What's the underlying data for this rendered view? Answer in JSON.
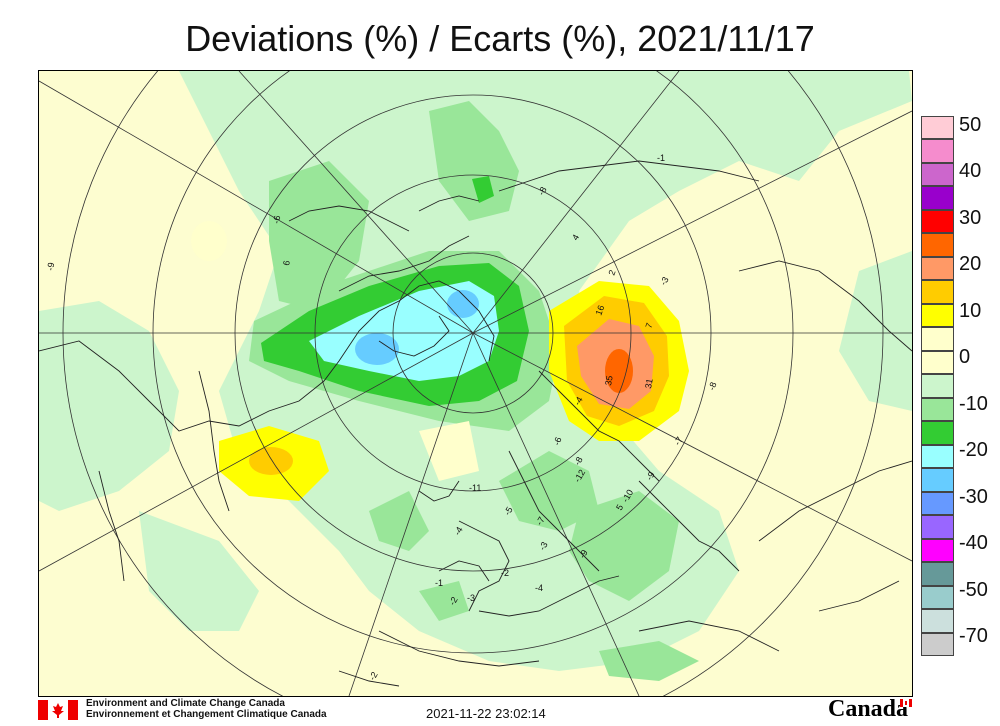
{
  "title": "Deviations (%) / Ecarts (%), 2021/11/17",
  "legend": {
    "labels": [
      "50",
      "40",
      "30",
      "20",
      "10",
      "0",
      "-10",
      "-20",
      "-30",
      "-40",
      "-50",
      "-70"
    ],
    "swatches": [
      "#ffccd6",
      "#f58ccd",
      "#cc66cc",
      "#9900cc",
      "#ff0000",
      "#ff6600",
      "#ff9966",
      "#ffcc00",
      "#ffff00",
      "#ffffcc",
      "#ffffcc",
      "#ccf5cc",
      "#99e699",
      "#33cc33",
      "#99ffff",
      "#66ccff",
      "#6699ff",
      "#9966ff",
      "#ff00ff",
      "#669999",
      "#99cccc",
      "#cce0dd",
      "#cccccc"
    ]
  },
  "colors": {
    "plus_0_10": "#ffffcc",
    "minus_0_10": "#ccf5cc",
    "minus_10_15": "#99e699",
    "minus_15_20": "#33cc33",
    "minus_20_25": "#99ffff",
    "minus_25_30": "#66ccff",
    "plus_10_15": "#ffff00",
    "plus_15_20": "#ffcc00",
    "plus_20_25": "#ff9966",
    "plus_25_30": "#ff6600"
  },
  "station_values": [
    "-9",
    "4",
    "6",
    "2",
    "16",
    "7",
    "35",
    "31",
    "5",
    "-4",
    "-6",
    "-11",
    "-8",
    "-5",
    "-7",
    "-3",
    "-4",
    "-2",
    "-9",
    "-12",
    "-10",
    "-1",
    "-3",
    "-2",
    "-4",
    "-8",
    "-3",
    "-1",
    "-2",
    "-6",
    "-7",
    "-9",
    "-8"
  ],
  "footer": {
    "org_en": "Environment and Climate Change Canada",
    "org_fr": "Environnement et Changement Climatique Canada",
    "timestamp": "2021-11-22 23:02:14",
    "wordmark": "Canada"
  }
}
